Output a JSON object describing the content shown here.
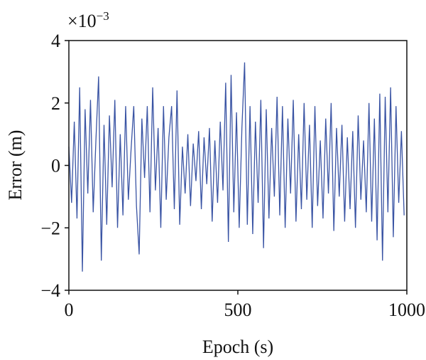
{
  "chart_data": {
    "type": "line",
    "xlabel": "Epoch (s)",
    "ylabel": "Error (m)",
    "y_scale_base": "×10",
    "y_scale_exponent": "−3",
    "xlim": [
      0,
      1000
    ],
    "ylim": [
      -4,
      4
    ],
    "xticks": [
      0,
      500,
      1000
    ],
    "yticks": [
      {
        "value": -4,
        "label": "−4"
      },
      {
        "value": -2,
        "label": "−2"
      },
      0,
      2,
      4
    ],
    "x": [
      0,
      8,
      16,
      24,
      32,
      40,
      48,
      56,
      64,
      72,
      80,
      88,
      96,
      104,
      112,
      120,
      128,
      136,
      144,
      152,
      160,
      168,
      176,
      184,
      192,
      200,
      208,
      216,
      224,
      232,
      240,
      248,
      256,
      264,
      272,
      280,
      288,
      296,
      304,
      312,
      320,
      328,
      336,
      344,
      352,
      360,
      368,
      376,
      384,
      392,
      400,
      408,
      416,
      424,
      432,
      440,
      448,
      456,
      464,
      472,
      480,
      488,
      496,
      504,
      512,
      520,
      528,
      536,
      544,
      552,
      560,
      568,
      576,
      584,
      592,
      600,
      608,
      616,
      624,
      632,
      640,
      648,
      656,
      664,
      672,
      680,
      688,
      696,
      704,
      712,
      720,
      728,
      736,
      744,
      752,
      760,
      768,
      776,
      784,
      792,
      800,
      808,
      816,
      824,
      832,
      840,
      848,
      856,
      864,
      872,
      880,
      888,
      896,
      904,
      912,
      920,
      928,
      936,
      944,
      952,
      960,
      968,
      976,
      984,
      992
    ],
    "series": [
      {
        "color": "#3a54a4",
        "values": [
          0.6,
          -1.2,
          1.4,
          -1.7,
          2.5,
          -3.4,
          1.8,
          -0.9,
          2.1,
          -1.5,
          0.8,
          2.85,
          -3.05,
          1.3,
          -1.9,
          1.6,
          -0.7,
          2.1,
          -2.0,
          1.0,
          -1.6,
          1.9,
          -1.1,
          0.5,
          1.9,
          -1.3,
          -2.85,
          1.5,
          -0.4,
          1.9,
          -1.5,
          2.5,
          -0.8,
          1.2,
          -2.0,
          1.9,
          -1.1,
          0.9,
          1.9,
          -1.4,
          2.4,
          -1.9,
          0.6,
          -0.9,
          1.0,
          -1.3,
          0.7,
          -0.5,
          1.1,
          -1.4,
          0.9,
          -0.6,
          1.2,
          -1.8,
          0.8,
          -1.2,
          1.4,
          -0.8,
          2.65,
          -2.45,
          2.9,
          -1.5,
          1.7,
          -2.0,
          1.2,
          3.3,
          -1.9,
          1.9,
          -2.2,
          1.4,
          -1.2,
          2.1,
          -2.65,
          1.8,
          -1.7,
          1.2,
          -1.0,
          2.2,
          -1.6,
          1.9,
          -2.0,
          1.5,
          -0.9,
          2.1,
          -1.8,
          1.0,
          -1.4,
          2.0,
          -1.1,
          1.3,
          -2.0,
          1.9,
          -1.3,
          0.8,
          -1.7,
          1.5,
          -0.9,
          2.0,
          -2.1,
          1.2,
          -1.0,
          1.3,
          -1.8,
          0.9,
          -1.4,
          1.1,
          -2.0,
          1.6,
          -1.1,
          0.8,
          -1.5,
          2.0,
          -1.8,
          1.5,
          -2.4,
          2.3,
          -3.05,
          2.2,
          -1.5,
          2.5,
          -2.3,
          1.9,
          -1.2,
          1.1,
          -1.6
        ]
      }
    ]
  }
}
